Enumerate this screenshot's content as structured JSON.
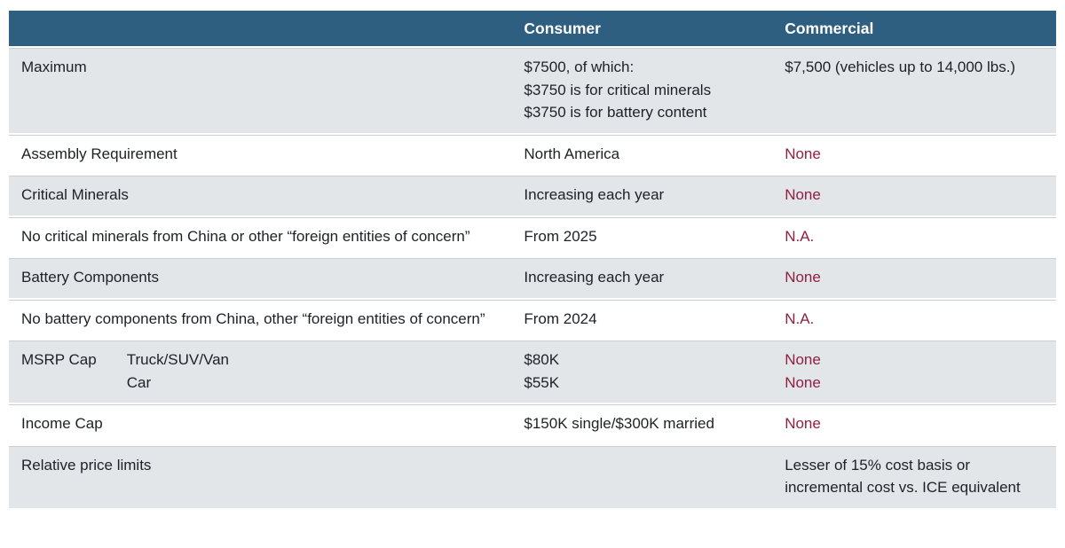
{
  "colors": {
    "header_bg": "#2e5f80",
    "header_text": "#ffffff",
    "row_shade_bg": "#e3e6e9",
    "row_plain_bg": "#ffffff",
    "accent_red": "#8e2040",
    "body_text": "#1d2126",
    "row_divider": "#c9ced3"
  },
  "table": {
    "columns": {
      "criteria": "",
      "consumer": "Consumer",
      "commercial": "Commercial"
    },
    "rows": [
      {
        "label": "Maximum",
        "consumer": [
          "$7500, of which:",
          "$3750 is for critical minerals",
          "$3750 is for battery content"
        ],
        "commercial": [
          "$7,500 (vehicles up to 14,000 lbs.)"
        ],
        "commercial_color": "dark"
      },
      {
        "label": "Assembly Requirement",
        "consumer": [
          "North America"
        ],
        "commercial": [
          "None"
        ],
        "commercial_color": "red"
      },
      {
        "label": "Critical Minerals",
        "consumer": [
          "Increasing each year"
        ],
        "commercial": [
          "None"
        ],
        "commercial_color": "red"
      },
      {
        "label": "No critical minerals from China or other “foreign entities of concern”",
        "consumer": [
          "From 2025"
        ],
        "commercial": [
          "N.A."
        ],
        "commercial_color": "red"
      },
      {
        "label": "Battery Components",
        "consumer": [
          "Increasing each year"
        ],
        "commercial": [
          "None"
        ],
        "commercial_color": "red"
      },
      {
        "label": "No battery components from China, other “foreign entities of concern”",
        "consumer": [
          "From 2024"
        ],
        "commercial": [
          "N.A."
        ],
        "commercial_color": "red"
      },
      {
        "label": "MSRP Cap",
        "sublabels": [
          "Truck/SUV/Van",
          "Car"
        ],
        "consumer": [
          "$80K",
          "$55K"
        ],
        "commercial": [
          "None",
          "None"
        ],
        "commercial_color": "red"
      },
      {
        "label": "Income Cap",
        "consumer": [
          "$150K single/$300K married"
        ],
        "commercial": [
          "None"
        ],
        "commercial_color": "red"
      },
      {
        "label": "Relative price limits",
        "consumer": [],
        "commercial": [
          "Lesser of 15% cost basis or",
          "incremental cost vs. ICE equivalent"
        ],
        "commercial_color": "dark"
      }
    ]
  }
}
